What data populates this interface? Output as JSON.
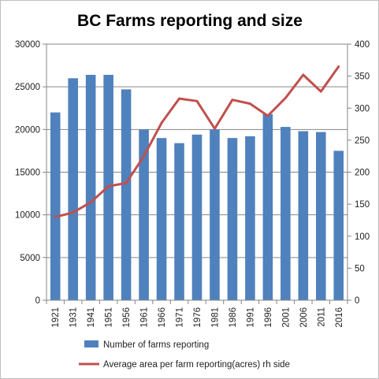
{
  "chart_data": {
    "type": "bar",
    "title": "BC Farms reporting and size",
    "categories": [
      "1921",
      "1931",
      "1941",
      "1951",
      "1956",
      "1961",
      "1966",
      "1971",
      "1976",
      "1981",
      "1986",
      "1991",
      "1996",
      "2001",
      "2006",
      "2011",
      "2016"
    ],
    "series": [
      {
        "name": "Number of farms reporting",
        "type": "bar",
        "axis": "left",
        "color": "#4f81bd",
        "values": [
          22000,
          26000,
          26400,
          26400,
          24700,
          20000,
          19000,
          18400,
          19400,
          20000,
          19000,
          19200,
          21800,
          20300,
          19800,
          19700,
          17500
        ]
      },
      {
        "name": "Average area per farm reporting(acres) rh side",
        "type": "line",
        "axis": "right",
        "color": "#c0504d",
        "values": [
          130,
          137,
          153,
          178,
          183,
          225,
          277,
          315,
          311,
          268,
          313,
          307,
          288,
          316,
          352,
          326,
          365
        ]
      }
    ],
    "y_left": {
      "min": 0,
      "max": 30000,
      "ticks": [
        "0",
        "5000",
        "10000",
        "15000",
        "20000",
        "25000",
        "30000"
      ]
    },
    "y_right": {
      "min": 0,
      "max": 400,
      "ticks": [
        "0",
        "50",
        "100",
        "150",
        "200",
        "250",
        "300",
        "350",
        "400"
      ]
    },
    "grid": true,
    "legend": "bottom",
    "gridline_color": "#868686",
    "axis_color": "#868686"
  }
}
